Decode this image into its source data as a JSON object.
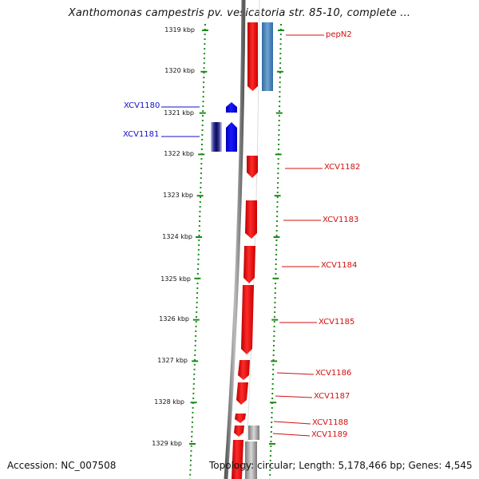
{
  "title": "Xanthomonas campestris pv. vesicatoria str. 85-10, complete ...",
  "accession": "Accession: NC_007508",
  "topology": "Topology: circular; Length: 5,178,466 bp; Genes: 4,545",
  "colors": {
    "forward_gene": "#ff1010",
    "reverse_gene": "#0000ff",
    "rna_gene": "#4a7fb0",
    "pseudo_gene": "#999999",
    "backbone": "#8a8a8a",
    "ruler": "#1a8a1a",
    "red_label": "#d01010",
    "blue_label": "#1010c8"
  },
  "ruler": {
    "ticks": [
      "1319 kbp",
      "1320 kbp",
      "1321 kbp",
      "1322 kbp",
      "1323 kbp",
      "1324 kbp",
      "1325 kbp",
      "1326 kbp",
      "1327 kbp",
      "1328 kbp",
      "1329 kbp"
    ]
  },
  "genes": [
    {
      "label": "pepN2",
      "strand": "+",
      "color": "red"
    },
    {
      "label": "XCV1180",
      "strand": "-",
      "color": "blue"
    },
    {
      "label": "XCV1181",
      "strand": "-",
      "color": "blue"
    },
    {
      "label": "XCV1182",
      "strand": "+",
      "color": "red"
    },
    {
      "label": "XCV1183",
      "strand": "+",
      "color": "red"
    },
    {
      "label": "XCV1184",
      "strand": "+",
      "color": "red"
    },
    {
      "label": "XCV1185",
      "strand": "+",
      "color": "red"
    },
    {
      "label": "XCV1186",
      "strand": "+",
      "color": "red"
    },
    {
      "label": "XCV1187",
      "strand": "+",
      "color": "red"
    },
    {
      "label": "XCV1188",
      "strand": "+",
      "color": "red"
    },
    {
      "label": "XCV1189",
      "strand": "+",
      "color": "red"
    }
  ]
}
